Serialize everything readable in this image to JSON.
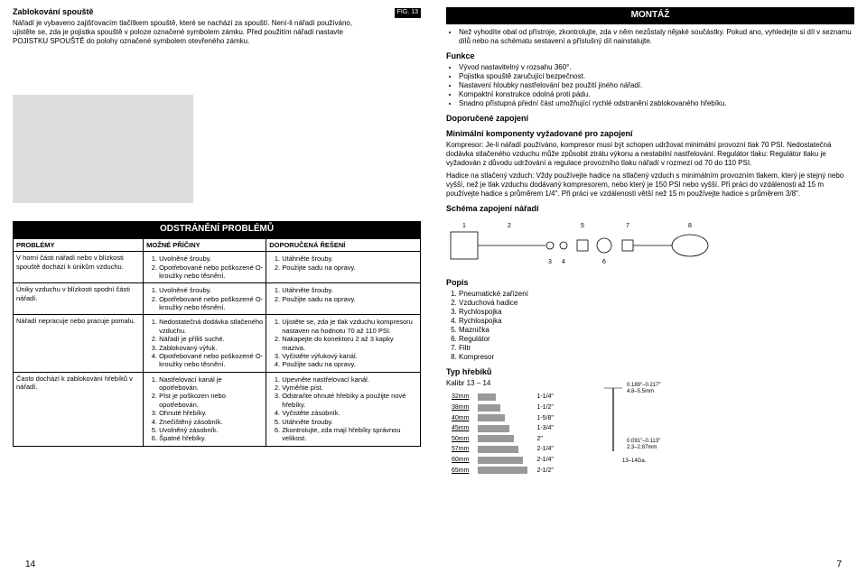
{
  "left": {
    "title": "Zablokování spouště",
    "para1": "Nářadí je vybaveno zajišťovacím tlačítkem spouště, které se nachází za spouští. Není-li nářadí používáno, ujistěte se, zda je pojistka spouště v poloze označené symbolem zámku. Před použitím nářadí nastavte POJISTKU SPOUŠTĚ do polohy označené symbolem otevřeného zámku.",
    "fig_label": "FIG. 13",
    "troubleshoot_header": "ODSTRÁNĚNÍ PROBLÉMŮ",
    "table": {
      "headers": [
        "PROBLÉMY",
        "MOŽNÉ PŘÍČINY",
        "DOPORUČENÁ ŘEŠENÍ"
      ],
      "rows": [
        {
          "problem": "V horní části nářadí nebo v blízkosti spouště dochází k únikům vzduchu.",
          "causes": [
            "Uvolněné šrouby.",
            "Opotřebované nebo poškozené O-kroužky nebo těsnění."
          ],
          "solutions": [
            "Utáhněte šrouby.",
            "Použijte sadu na opravy."
          ]
        },
        {
          "problem": "Úniky vzduchu v blízkosti spodní části nářadí.",
          "causes": [
            "Uvolněné šrouby.",
            "Opotřebované nebo poškozené O-kroužky nebo těsnění."
          ],
          "solutions": [
            "Utáhněte šrouby.",
            "Použijte sadu na opravy."
          ]
        },
        {
          "problem": "Nářadí nepracuje nebo pracuje pomalu.",
          "causes": [
            "Nedostatečná dodávka stlačeného vzduchu.",
            "Nářadí je příliš suché.",
            "Zablokovaný výfuk.",
            "Opotřebované nebo poškozené O-kroužky nebo těsnění."
          ],
          "solutions": [
            "Ujistěte se, zda je tlak vzduchu kompresoru nastaven na hodnotu 70 až 110 PSI.",
            "Nakapejte do konektoru 2 až 3 kapky maziva.",
            "Vyčistěte výfukový kanál.",
            "Použijte sadu na opravy."
          ]
        },
        {
          "problem": "Často dochází k zablokování hřebíků v nářadí.",
          "causes": [
            "Nastřelovací kanál je opotřebován.",
            "Píst je poškozen nebo opotřebován.",
            "Ohnuté hřebíky.",
            "Znečištěný zásobník.",
            "Uvolněný zásobník.",
            "Špatné hřebíky."
          ],
          "solutions": [
            "Upevněte nastřelovací kanál.",
            "Vyměňte píst.",
            "Odstraňte ohnuté hřebíky a použijte nové hřebíky.",
            "Vyčistěte zásobník.",
            "Utáhněte šrouby.",
            "Zkontrolujte, zda mají hřebíky správnou velikost."
          ]
        }
      ]
    },
    "page_num": "14"
  },
  "right": {
    "montaz_header": "MONTÁŽ",
    "intro_bullet": "Než vyhodíte obal od přístroje, zkontrolujte, zda v něm nezůstaly nějaké součástky. Pokud ano, vyhledejte si díl v seznamu dílů nebo na schématu sestavení a příslušný díl nainstalujte.",
    "funkce_header": "Funkce",
    "funkce_items": [
      "Vývod nastavitelný v rozsahu 360°.",
      "Pojistka spouště zaručující bezpečnost.",
      "Nastavení hloubky nastřelování bez použití jiného nářadí.",
      "Kompaktní konstrukce odolná proti pádu.",
      "Snadno přístupná přední část umožňující rychlé odstranění zablokovaného hřebíku."
    ],
    "zapojeni_header": "Doporučené zapojení",
    "min_header": "Minimální komponenty vyžadované pro zapojení",
    "min_para": "Kompresor: Je-li nářadí používáno, kompresor musí být schopen udržovat minimální provozní tlak 70 PSI. Nedostatečná dodávka stlačeného vzduchu může způsobit ztrátu výkonu a nestabilní nastřelování. Regulátor tlaku: Regulátor tlaku je vyžadován z důvodu udržování a regulace provozního tlaku nářadí v rozmezí od 70 do 110 PSI.",
    "min_para2": "Hadice na stlačený vzduch: Vždy používejte hadice na stlačený vzduch s minimálním provozním tlakem, který je stejný nebo vyšší, než je tlak vzduchu dodávaný kompresorem, nebo který je 150 PSI nebo vyšší. Při práci do vzdálenosti až 15 m používejte hadice s průměrem 1/4\". Při práci ve vzdálenosti větší než 15 m používejte hadice s průměrem 3/8\".",
    "schema_header": "Schéma zapojení nářadí",
    "diagram_labels": [
      "1",
      "2",
      "3",
      "4",
      "5",
      "6",
      "7",
      "8"
    ],
    "popis_header": "Popis",
    "popis_items": [
      "Pneumatické zařízení",
      "Vzduchová hadice",
      "Rychlospojka",
      "Rychlospojka",
      "Maznička",
      "Regulátor",
      "Filtr",
      "Kompresor"
    ],
    "typ_header": "Typ hřebíků",
    "kalibr": "Kalibr 13 – 14",
    "nail_spec_top": "0.189\"–0.217\"",
    "nail_spec_top2": "4.8–5.5mm",
    "nail_spec_side": "0.091\"–0.113\"",
    "nail_spec_side2": "2.3–2.87mm",
    "nail_ga": "13–14Ga.",
    "nail_rows": [
      {
        "mm": "32mm",
        "in": "1-1/4\""
      },
      {
        "mm": "38mm",
        "in": "1-1/2\""
      },
      {
        "mm": "40mm",
        "in": "1-5/8\""
      },
      {
        "mm": "45mm",
        "in": "1-3/4\""
      },
      {
        "mm": "50mm",
        "in": "2\""
      },
      {
        "mm": "57mm",
        "in": "2-1/4\""
      },
      {
        "mm": "60mm",
        "in": "2-1/4\""
      },
      {
        "mm": "65mm",
        "in": "2-1/2\""
      }
    ],
    "page_num": "7"
  },
  "colors": {
    "header_bg": "#000000",
    "header_fg": "#ffffff",
    "border": "#000000",
    "photo_bg": "#dddddd"
  }
}
